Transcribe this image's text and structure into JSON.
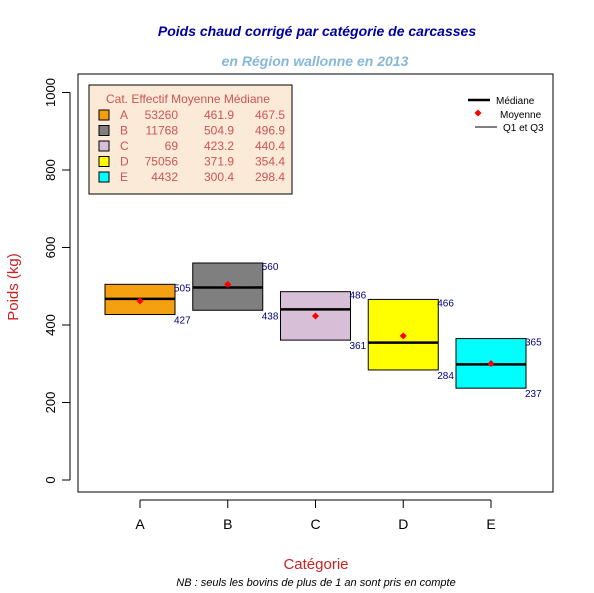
{
  "chart_data": {
    "type": "box",
    "title": "Poids chaud corrigé par catégorie de carcasses",
    "subtitle": "en Région wallonne en 2013",
    "xlabel": "Catégorie",
    "ylabel": "Poids (kg)",
    "note": "NB : seuls les bovins de plus de 1 an sont pris en compte",
    "ylim": [
      0,
      1000
    ],
    "yticks": [
      "0",
      "200",
      "400",
      "600",
      "800",
      "1000"
    ],
    "categories": [
      "A",
      "B",
      "C",
      "D",
      "E"
    ],
    "boxes": [
      {
        "cat": "A",
        "q1": 427,
        "q3": 505,
        "median": 467.5,
        "mean": 461.9,
        "count": "53260",
        "q1_label": "427",
        "q3_label": "505",
        "color": "#f5a010"
      },
      {
        "cat": "B",
        "q1": 438,
        "q3": 560,
        "median": 496.9,
        "mean": 504.9,
        "count": "11768",
        "q1_label": "438",
        "q3_label": "560",
        "color": "#7f7f7f"
      },
      {
        "cat": "C",
        "q1": 361,
        "q3": 486,
        "median": 440.4,
        "mean": 423.2,
        "count": "69",
        "q1_label": "361",
        "q3_label": "486",
        "color": "#d8bfd8"
      },
      {
        "cat": "D",
        "q1": 284,
        "q3": 466,
        "median": 354.4,
        "mean": 371.9,
        "count": "75056",
        "q1_label": "284",
        "q3_label": "466",
        "color": "#ffff00"
      },
      {
        "cat": "E",
        "q1": 237,
        "q3": 365,
        "median": 298.4,
        "mean": 300.4,
        "count": "4432",
        "q1_label": "237",
        "q3_label": "365",
        "color": "#00ffff"
      }
    ],
    "table": {
      "header": "Cat. Effectif Moyenne Médiane",
      "rows": [
        {
          "cat": "A",
          "count": "53260",
          "mean": "461.9",
          "median": "467.5"
        },
        {
          "cat": "B",
          "count": "11768",
          "mean": "504.9",
          "median": "496.9"
        },
        {
          "cat": "C",
          "count": "69",
          "mean": "423.2",
          "median": "440.4"
        },
        {
          "cat": "D",
          "count": "75056",
          "mean": "371.9",
          "median": "354.4"
        },
        {
          "cat": "E",
          "count": "4432",
          "mean": "300.4",
          "median": "298.4"
        }
      ]
    },
    "legend": {
      "items": [
        "Médiane",
        "Moyenne",
        "Q1 et Q3"
      ],
      "placement": "top-right"
    },
    "colors": {
      "title": "#0000a0",
      "subtitle": "#87b8d8",
      "axis_label": "#cc2222",
      "table_text": "#cc5555",
      "table_bg": "#fbead8",
      "mean": "#ff0000",
      "quartile_label": "#000080"
    }
  }
}
